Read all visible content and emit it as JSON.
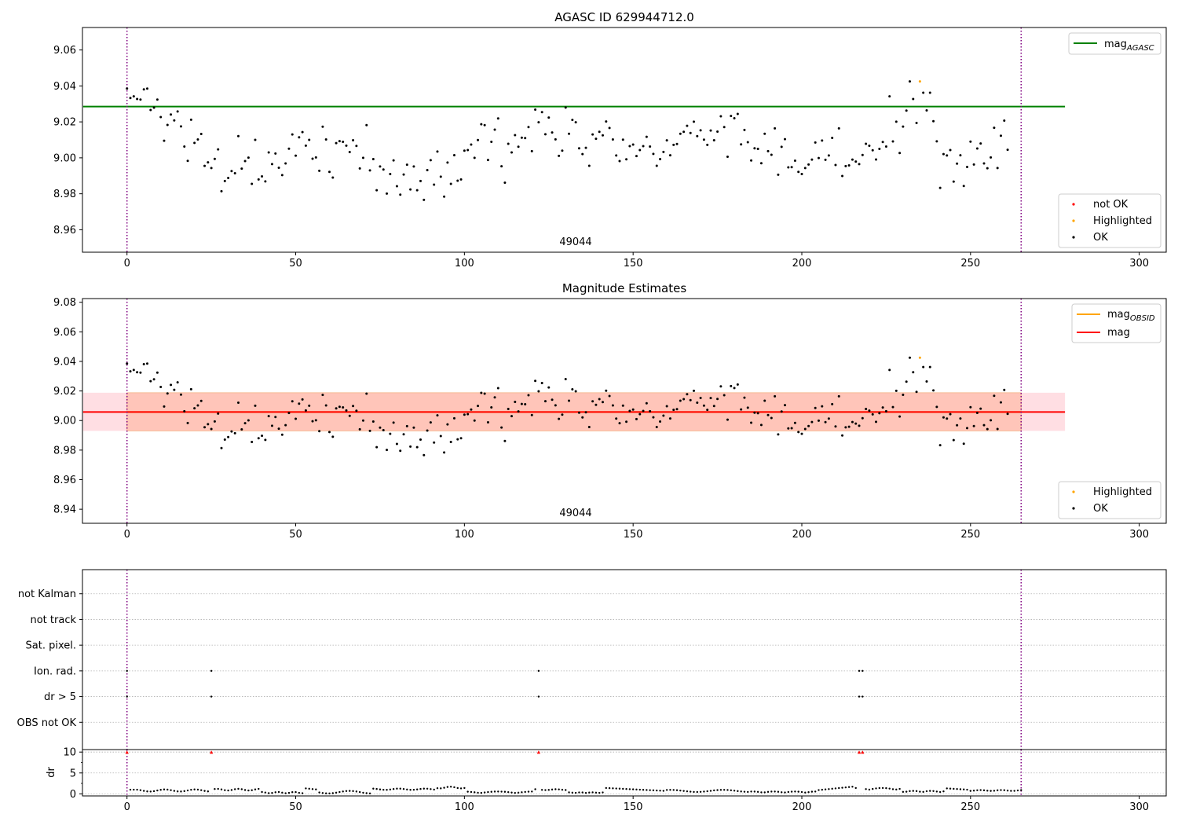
{
  "chart_data": [
    {
      "type": "scatter",
      "title": "AGASC ID 629944712.0",
      "xlim": [
        -13.2,
        308
      ],
      "ylim": [
        8.9475,
        9.0725
      ],
      "x_ticks": [
        0,
        50,
        100,
        150,
        200,
        250,
        300
      ],
      "y_ticks": [
        8.96,
        8.98,
        9.0,
        9.02,
        9.04,
        9.06
      ],
      "y_tick_labels": [
        "8.96",
        "8.98",
        "9.00",
        "9.02",
        "9.04",
        "9.06"
      ],
      "grid": false,
      "obsid_label": "49044",
      "obsid_boundaries": [
        0,
        265
      ],
      "lines": [
        {
          "name": "mag",
          "subscript": "AGASC",
          "value": 9.0285,
          "x_range": [
            -13,
            278
          ],
          "color": "#008000"
        }
      ],
      "series": [
        {
          "name": "not OK",
          "color": "#ff0000",
          "x": [],
          "y": []
        },
        {
          "name": "Highlighted",
          "color": "#ffa500",
          "x": [
            235
          ],
          "y": [
            9.0425
          ]
        },
        {
          "name": "OK",
          "color": "#000000",
          "x": [],
          "y": []
        }
      ],
      "legend_top_position": "top-right",
      "legend_bottom_position": "bottom-right"
    },
    {
      "type": "scatter",
      "title": "Magnitude Estimates",
      "xlim": [
        -13.2,
        308
      ],
      "ylim": [
        8.9305,
        9.0825
      ],
      "x_ticks": [
        0,
        50,
        100,
        150,
        200,
        250,
        300
      ],
      "y_ticks": [
        8.94,
        8.96,
        8.98,
        9.0,
        9.02,
        9.04,
        9.06,
        9.08
      ],
      "y_tick_labels": [
        "8.94",
        "8.96",
        "8.98",
        "9.00",
        "9.02",
        "9.04",
        "9.06",
        "9.08"
      ],
      "grid": false,
      "obsid_label": "49044",
      "obsid_boundaries": [
        0,
        265
      ],
      "lines": [
        {
          "name": "mag",
          "subscript": "OBSID",
          "value": 9.0058,
          "x_range": [
            0,
            265
          ],
          "color": "#ffa500",
          "band": [
            8.993,
            9.0188
          ],
          "band_color": "#ffa07a"
        },
        {
          "name": "mag",
          "subscript": "",
          "value": 9.0058,
          "x_range": [
            -13,
            278
          ],
          "color": "#ff0000",
          "band": [
            8.993,
            9.0188
          ],
          "band_color": "#ffb6c1"
        }
      ],
      "series": [
        {
          "name": "Highlighted",
          "color": "#ffa500",
          "x": [
            235
          ],
          "y": [
            9.0425
          ]
        },
        {
          "name": "OK",
          "color": "#000000",
          "x": [],
          "y": []
        }
      ],
      "legend_top_position": "top-right",
      "legend_bottom_position": "bottom-right"
    },
    {
      "type": "scatter",
      "title": "",
      "xlim": [
        -13.2,
        308
      ],
      "x_ticks": [
        0,
        50,
        100,
        150,
        200,
        250,
        300
      ],
      "flag_categories": [
        "not Kalman",
        "not track",
        "Sat. pixel.",
        "Ion. rad.",
        "dr > 5",
        "OBS not OK"
      ],
      "flag_points": [
        {
          "category": "Ion. rad.",
          "x": [
            0,
            25,
            122,
            217,
            218
          ]
        },
        {
          "category": "dr > 5",
          "x": [
            0,
            25,
            122,
            217,
            218
          ]
        }
      ],
      "obsid_boundaries": [
        0,
        265
      ],
      "grid": true
    },
    {
      "type": "scatter",
      "title": "",
      "ylabel": "dr",
      "xlim": [
        -13.2,
        308
      ],
      "ylim": [
        -0.5,
        10.6
      ],
      "x_ticks": [
        0,
        50,
        100,
        150,
        200,
        250,
        300
      ],
      "y_ticks": [
        0,
        5,
        10
      ],
      "y_tick_labels": [
        "0",
        "5",
        "10"
      ],
      "grid": true,
      "obsid_boundaries": [
        0,
        265
      ],
      "clipped_marker_value": 10,
      "clipped_x": [
        0,
        25,
        122,
        217,
        218
      ],
      "series": [
        {
          "name": "dr",
          "color": "#000000",
          "x": [],
          "y": []
        }
      ]
    }
  ],
  "legend_labels": {
    "top_mag": "mag",
    "top_mag_sub": "AGASC",
    "top_not_ok": "not OK",
    "top_highlighted": "Highlighted",
    "top_ok": "OK",
    "mid_mag_obsid": "mag",
    "mid_mag_obsid_sub": "OBSID",
    "mid_mag": "mag",
    "mid_highlighted": "Highlighted",
    "mid_ok": "OK"
  },
  "colors": {
    "ok": "#000000",
    "not_ok": "#ff0000",
    "highlighted": "#ffa500",
    "agasc_line": "#008000",
    "mag_line": "#ff0000",
    "obsid_line": "#ffa500",
    "boundary": "#800080"
  }
}
